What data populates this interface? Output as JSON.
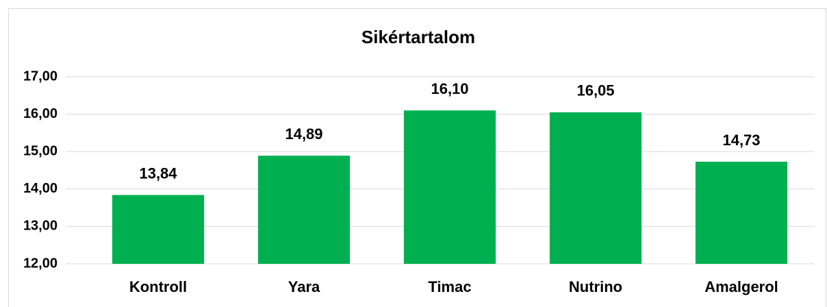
{
  "chart_data": {
    "type": "bar",
    "title": "Sikértartalom",
    "categories": [
      "Kontroll",
      "Yara",
      "Timac",
      "Nutrino",
      "Amalgerol"
    ],
    "values": [
      13.84,
      14.89,
      16.1,
      16.05,
      14.73
    ],
    "value_labels": [
      "13,84",
      "14,89",
      "16,10",
      "16,05",
      "14,73"
    ],
    "color": "#00b050",
    "ylim": [
      12,
      17
    ],
    "yticks": [
      {
        "value": 12,
        "label": "12,00"
      },
      {
        "value": 13,
        "label": "13,00"
      },
      {
        "value": 14,
        "label": "14,00"
      },
      {
        "value": 15,
        "label": "15,00"
      },
      {
        "value": 16,
        "label": "16,00"
      },
      {
        "value": 17,
        "label": "17,00"
      }
    ],
    "grid": true
  }
}
